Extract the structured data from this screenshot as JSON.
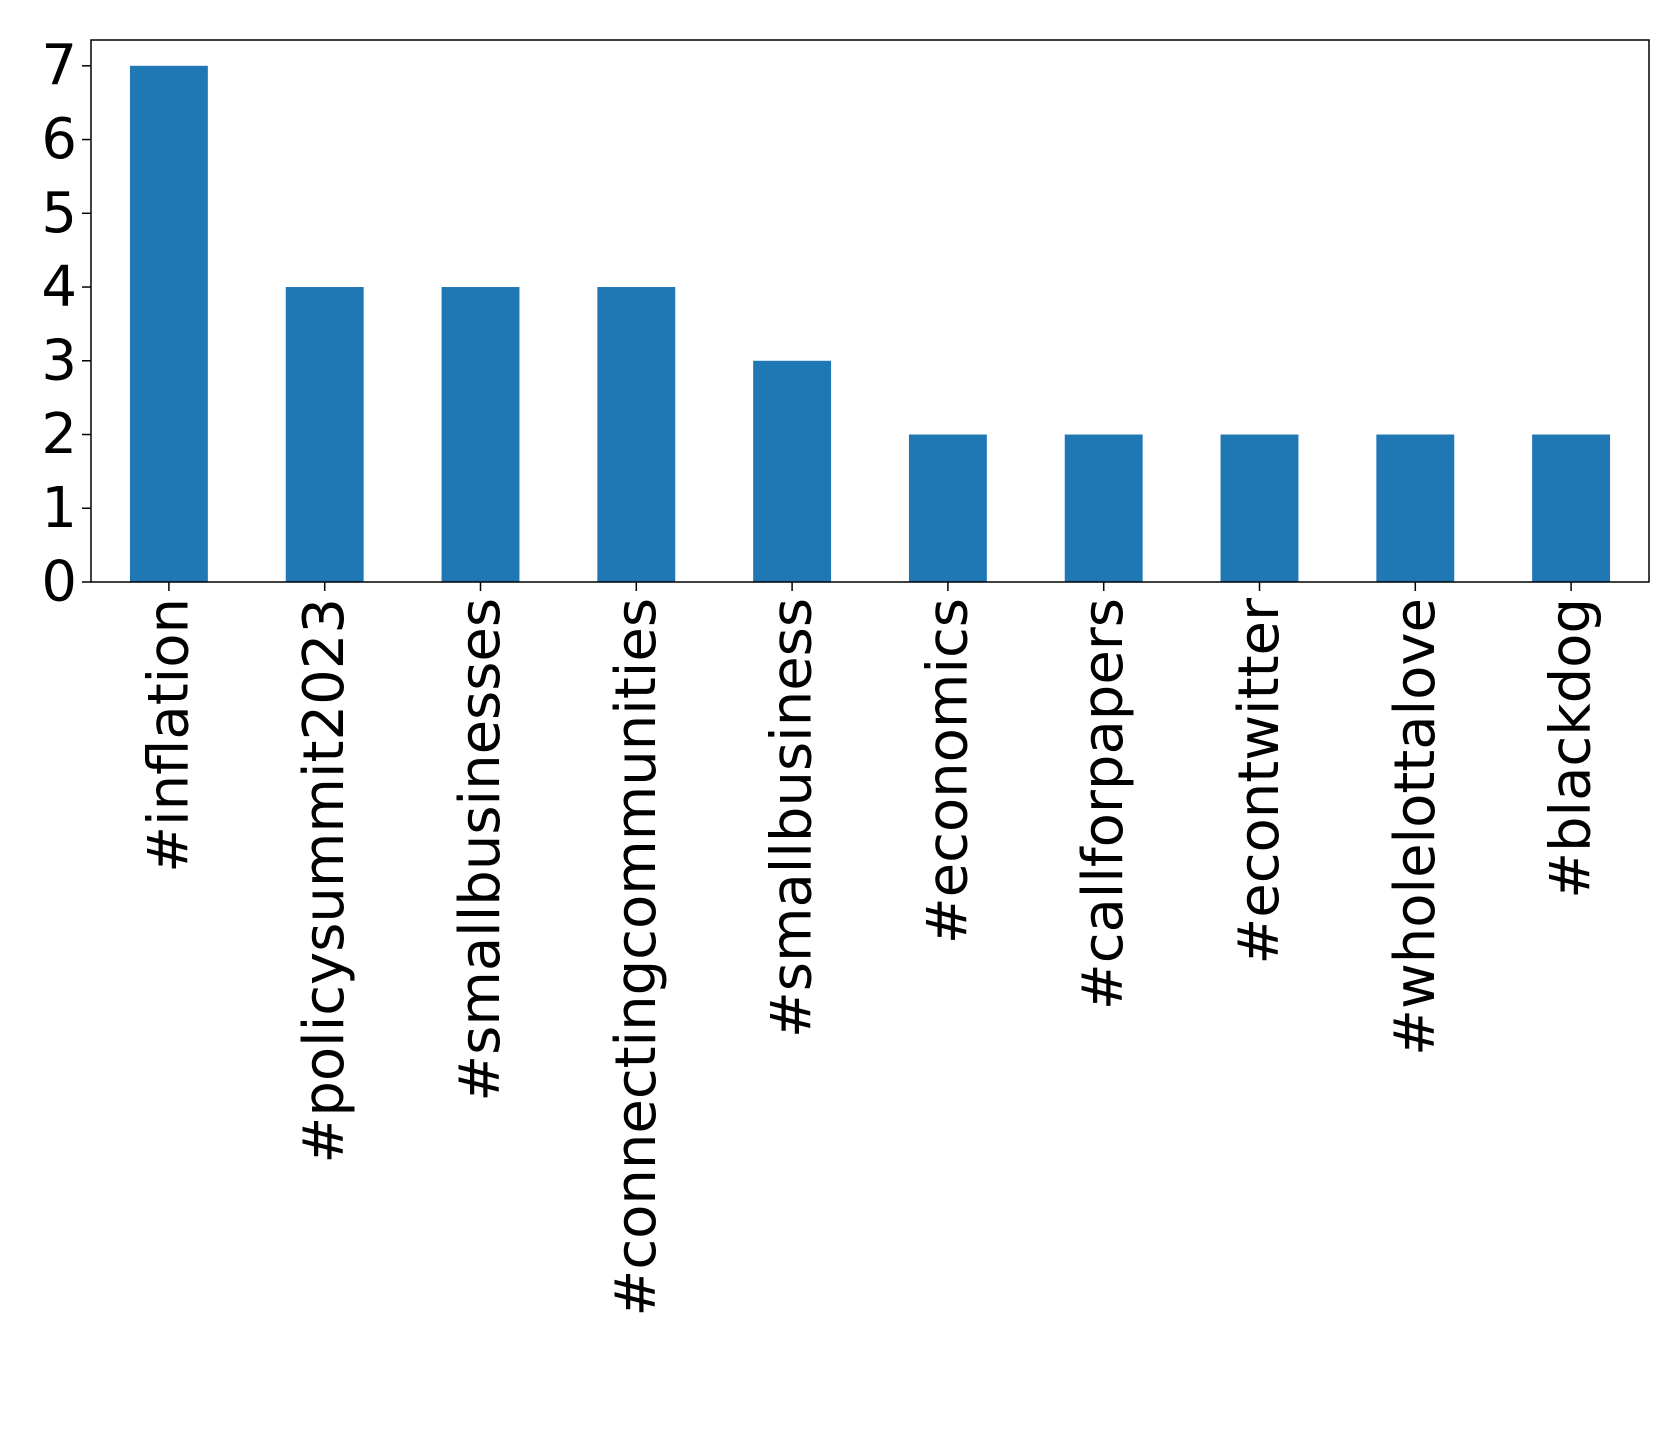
{
  "chart_data": {
    "type": "bar",
    "categories": [
      "#inflation",
      "#policysummit2023",
      "#smallbusinesses",
      "#connectingcommunities",
      "#smallbusiness",
      "#economics",
      "#callforpapers",
      "#econtwitter",
      "#wholelottalove",
      "#blackdog"
    ],
    "values": [
      7,
      4,
      4,
      4,
      3,
      2,
      2,
      2,
      2,
      2
    ],
    "yticks": [
      0,
      1,
      2,
      3,
      4,
      5,
      6,
      7
    ],
    "ylim": [
      0,
      7.35
    ],
    "title": "",
    "xlabel": "",
    "ylabel": "",
    "grid": false,
    "legend": "none",
    "colors": {
      "bar": "#1f77b4",
      "axis": "#000000",
      "background": "#ffffff"
    }
  }
}
